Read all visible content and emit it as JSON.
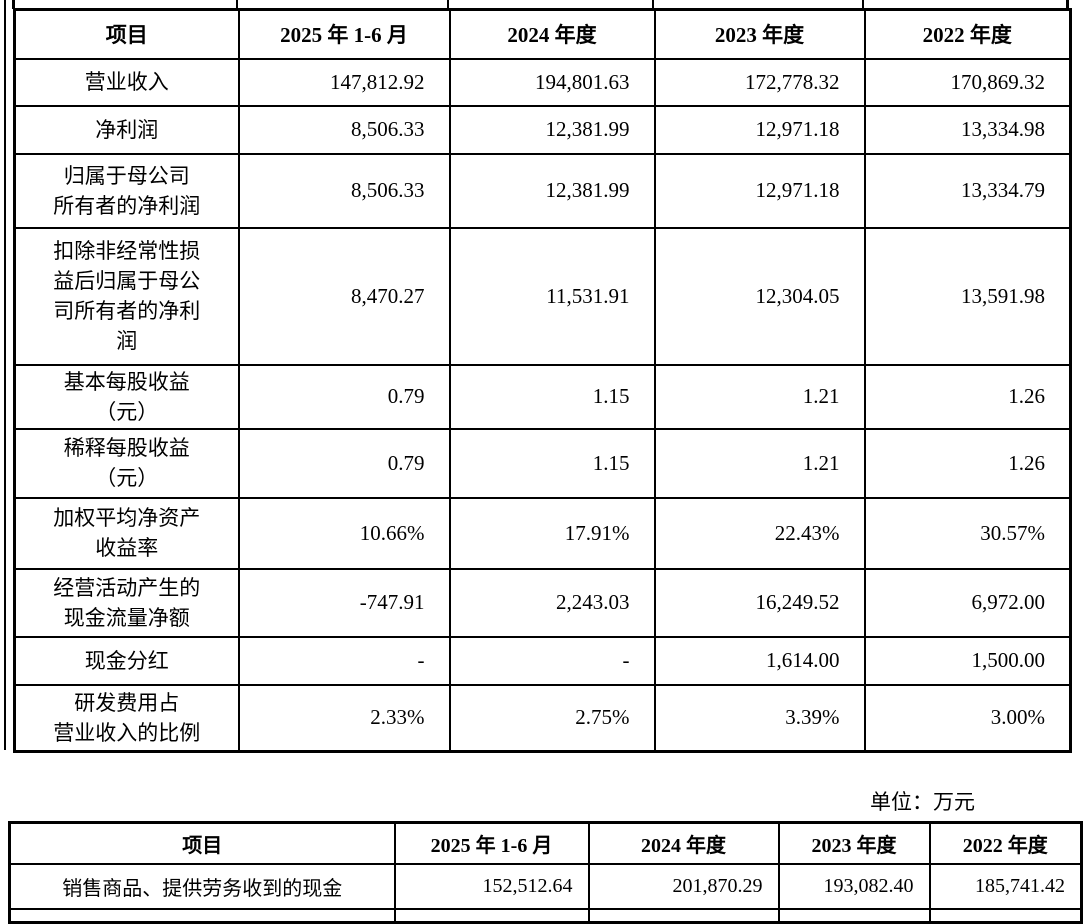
{
  "colors": {
    "text": "#000000",
    "background": "#ffffff",
    "table_border": "#000000"
  },
  "unit_label": "单位：万元",
  "table1": {
    "columns": [
      "项目",
      "2025 年 1-6 月",
      "2024 年度",
      "2023 年度",
      "2022 年度"
    ],
    "rows": [
      {
        "item": "营业收入",
        "values": [
          "147,812.92",
          "194,801.63",
          "172,778.32",
          "170,869.32"
        ]
      },
      {
        "item": "净利润",
        "values": [
          "8,506.33",
          "12,381.99",
          "12,971.18",
          "13,334.98"
        ]
      },
      {
        "item": "归属于母公司\n所有者的净利润",
        "values": [
          "8,506.33",
          "12,381.99",
          "12,971.18",
          "13,334.79"
        ]
      },
      {
        "item": "扣除非经常性损\n益后归属于母公\n司所有者的净利\n润",
        "values": [
          "8,470.27",
          "11,531.91",
          "12,304.05",
          "13,591.98"
        ]
      },
      {
        "item": "基本每股收益\n（元）",
        "values": [
          "0.79",
          "1.15",
          "1.21",
          "1.26"
        ]
      },
      {
        "item": "稀释每股收益\n（元）",
        "values": [
          "0.79",
          "1.15",
          "1.21",
          "1.26"
        ]
      },
      {
        "item": "加权平均净资产\n收益率",
        "values": [
          "10.66%",
          "17.91%",
          "22.43%",
          "30.57%"
        ]
      },
      {
        "item": "经营活动产生的\n现金流量净额",
        "values": [
          "-747.91",
          "2,243.03",
          "16,249.52",
          "6,972.00"
        ]
      },
      {
        "item": "现金分红",
        "values": [
          "-",
          "-",
          "1,614.00",
          "1,500.00"
        ]
      },
      {
        "item": "研发费用占\n营业收入的比例",
        "values": [
          "2.33%",
          "2.75%",
          "3.39%",
          "3.00%"
        ]
      }
    ]
  },
  "table2": {
    "columns": [
      "项目",
      "2025 年 1-6 月",
      "2024 年度",
      "2023 年度",
      "2022 年度"
    ],
    "rows": [
      {
        "item": "销售商品、提供劳务收到的现金",
        "values": [
          "152,512.64",
          "201,870.29",
          "193,082.40",
          "185,741.42"
        ]
      }
    ]
  }
}
